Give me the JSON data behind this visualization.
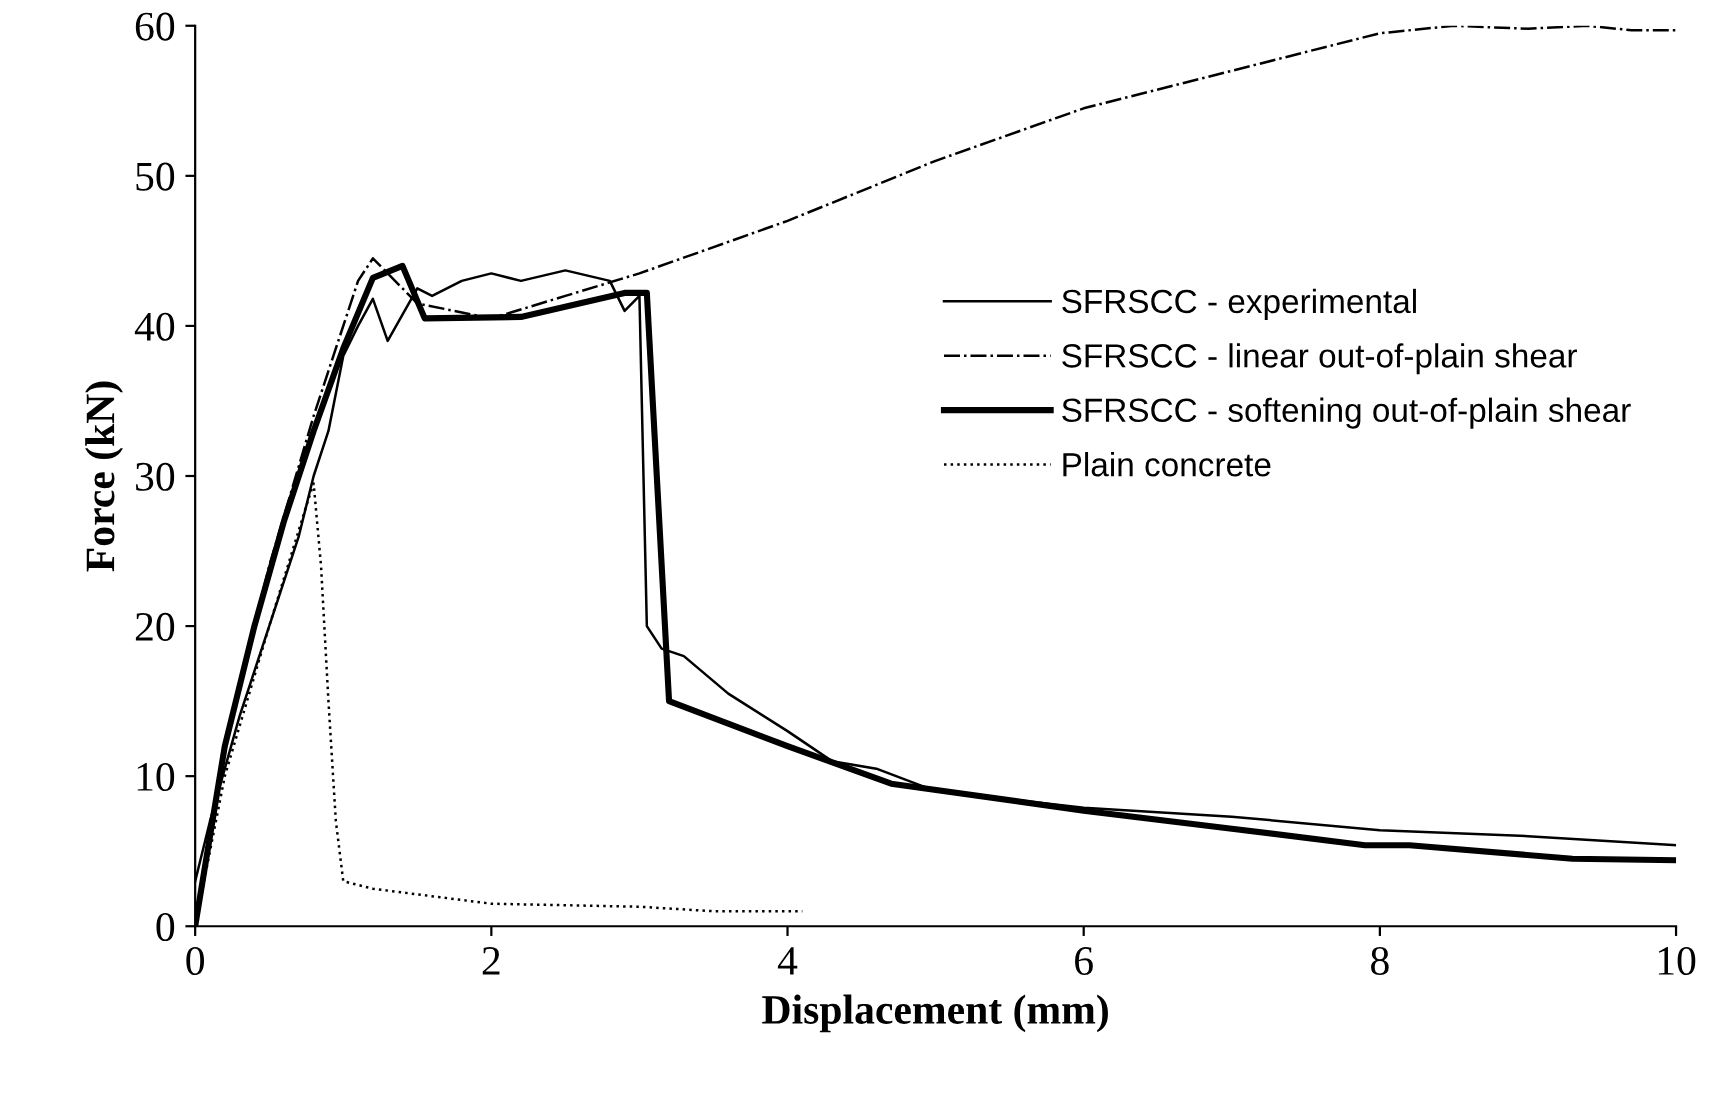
{
  "chart_data": {
    "type": "line",
    "xlabel": "Displacement (mm)",
    "ylabel": "Force (kN)",
    "xlim": [
      0,
      10
    ],
    "xticks": [
      0,
      2,
      4,
      6,
      8,
      10
    ],
    "ylim": [
      0,
      60
    ],
    "yticks": [
      0,
      10,
      20,
      30,
      40,
      50,
      60
    ],
    "grid": false,
    "legend": "right",
    "series": [
      {
        "name": "SFRSCC - experimental",
        "color": "#000000",
        "line_style": "solid",
        "x": [
          0,
          0.1,
          0.3,
          0.5,
          0.7,
          0.8,
          0.9,
          1.0,
          1.1,
          1.2,
          1.3,
          1.5,
          1.6,
          1.8,
          2.0,
          2.2,
          2.5,
          2.8,
          2.9,
          3.0,
          3.05,
          3.15,
          3.3,
          3.6,
          4.0,
          4.3,
          4.6,
          5.0,
          6.0,
          7.0,
          8.0,
          9.0,
          10.0
        ],
        "values": [
          3,
          7,
          14,
          20,
          26,
          30,
          33,
          38,
          40,
          41.8,
          39,
          42.5,
          42,
          43,
          43.5,
          43,
          43.7,
          43,
          41,
          42,
          20,
          18.5,
          18,
          15.5,
          13,
          11,
          10.5,
          9,
          7.9,
          7.3,
          6.4,
          6,
          5.4
        ]
      },
      {
        "name": "SFRSCC - linear out-of-plain shear",
        "color": "#000000",
        "line_style": "dashdot",
        "x": [
          0,
          0.2,
          0.5,
          0.8,
          1.1,
          1.2,
          1.5,
          2.0,
          2.5,
          3.0,
          4.0,
          5.0,
          6.0,
          7.0,
          8.0,
          8.5,
          9.0,
          9.4,
          9.7,
          10.0
        ],
        "values": [
          0,
          12,
          24,
          34,
          43,
          44.5,
          41.5,
          40.5,
          42,
          43.5,
          47,
          51,
          54.5,
          57,
          59.5,
          60,
          59.8,
          60,
          59.7,
          59.7
        ]
      },
      {
        "name": "SFRSCC - softening out-of-plain shear",
        "color": "#000000",
        "line_style": "solid",
        "x": [
          0,
          0.1,
          0.2,
          0.4,
          0.6,
          0.8,
          1.0,
          1.2,
          1.4,
          1.55,
          2.2,
          2.9,
          3.05,
          3.2,
          4.0,
          4.7,
          6.0,
          7.0,
          7.9,
          8.2,
          9.3,
          10.0
        ],
        "values": [
          0,
          6,
          12,
          20,
          27,
          33,
          38.5,
          43.2,
          44,
          40.5,
          40.6,
          42.2,
          42.2,
          15,
          12,
          9.5,
          7.7,
          6.5,
          5.4,
          5.4,
          4.5,
          4.4
        ]
      },
      {
        "name": "Plain concrete",
        "color": "#000000",
        "line_style": "dotted",
        "x": [
          0,
          0.2,
          0.5,
          0.75,
          0.8,
          0.85,
          0.9,
          0.95,
          1.0,
          1.2,
          2.0,
          3.0,
          3.5,
          4.1
        ],
        "values": [
          0,
          10,
          20,
          28,
          29.5,
          24,
          15,
          7,
          3,
          2.5,
          1.5,
          1.3,
          1.0,
          1.0
        ]
      }
    ]
  }
}
